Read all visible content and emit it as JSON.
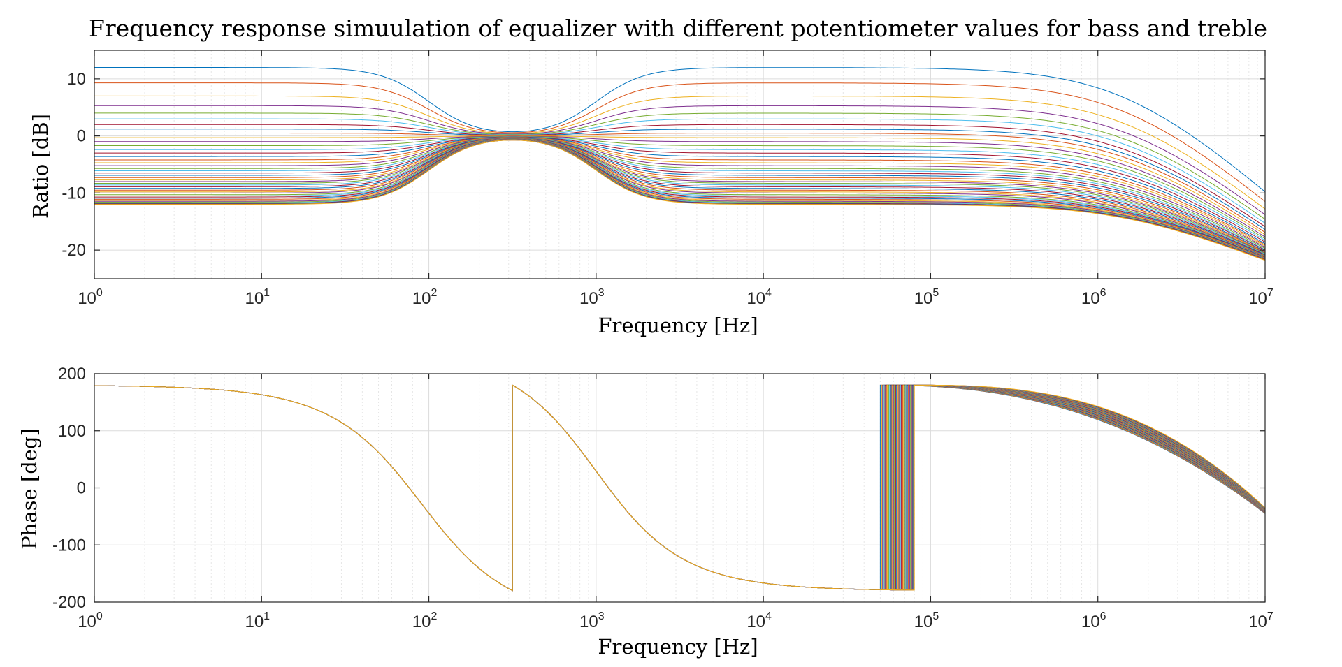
{
  "figure": {
    "title": "Frequency response simuulation of equalizer with different potentiometer values for bass and treble"
  },
  "chart_data": [
    {
      "type": "line",
      "id": "magnitude",
      "xlabel": "Frequency [Hz]",
      "ylabel": "Ratio [dB]",
      "xscale": "log",
      "xlim": [
        1,
        10000000
      ],
      "ylim": [
        -25,
        15
      ],
      "xticks": [
        {
          "base": "10",
          "exp": "0"
        },
        {
          "base": "10",
          "exp": "1"
        },
        {
          "base": "10",
          "exp": "2"
        },
        {
          "base": "10",
          "exp": "3"
        },
        {
          "base": "10",
          "exp": "4"
        },
        {
          "base": "10",
          "exp": "5"
        },
        {
          "base": "10",
          "exp": "6"
        },
        {
          "base": "10",
          "exp": "7"
        }
      ],
      "yticks": [
        "-20",
        "-10",
        "0",
        "10"
      ],
      "ytick_values": [
        -20,
        -10,
        0,
        10
      ],
      "grid": true,
      "series_count": 45,
      "series_description_values": {
        "bass_gain_dB": [
          12,
          9.3,
          7,
          5.3,
          4,
          3,
          2,
          1.2,
          0.5,
          -0.3,
          -1,
          -1.7,
          -2.4,
          -3,
          -3.6,
          -4.2,
          -4.7,
          -5.2,
          -5.7,
          -6.1,
          -6.5,
          -6.9,
          -7.3,
          -7.7,
          -8.0,
          -8.3,
          -8.6,
          -8.9,
          -9.2,
          -9.5,
          -9.8,
          -10.0,
          -10.3,
          -10.5,
          -10.7,
          -10.9,
          -11.1,
          -11.3,
          -11.45,
          -11.6,
          -11.72,
          -11.82,
          -11.9,
          -11.96,
          -12
        ],
        "treble_gain_dB": [
          12,
          9.3,
          7,
          5.3,
          4,
          3,
          2,
          1.2,
          0.5,
          -0.3,
          -1,
          -1.7,
          -2.4,
          -3,
          -3.6,
          -4.2,
          -4.7,
          -5.2,
          -5.7,
          -6.1,
          -6.5,
          -6.9,
          -7.3,
          -7.7,
          -8.0,
          -8.3,
          -8.6,
          -8.9,
          -9.2,
          -9.5,
          -9.8,
          -10.0,
          -10.3,
          -10.5,
          -10.7,
          -10.9,
          -11.1,
          -11.3,
          -11.45,
          -11.6,
          -11.72,
          -11.82,
          -11.9,
          -11.96,
          -12
        ],
        "endpoint_at_1e7_dB": [
          -9.8,
          -11.5,
          -12.8,
          -13.8,
          -14.6,
          -15.3,
          -15.9,
          -16.4,
          -16.9,
          -17.3,
          -17.7,
          -18.0,
          -18.3,
          -18.6,
          -18.9,
          -19.1,
          -19.3,
          -19.5,
          -19.7,
          -19.9,
          -20.0,
          -20.2,
          -20.3,
          -20.4,
          -20.5,
          -20.6,
          -20.7,
          -20.8,
          -20.9,
          -21.0,
          -21.05,
          -21.1,
          -21.15,
          -21.2,
          -21.25,
          -21.3,
          -21.35,
          -21.4,
          -21.45,
          -21.5,
          -21.55,
          -21.6,
          -21.65,
          -21.7,
          -21.8
        ]
      },
      "bass_corner_Hz": 100,
      "treble_corner_Hz": 1000,
      "center_Hz": 320
    },
    {
      "type": "line",
      "id": "phase",
      "xlabel": "Frequency [Hz]",
      "ylabel": "Phase [deg]",
      "xscale": "log",
      "xlim": [
        1,
        10000000
      ],
      "ylim": [
        -200,
        200
      ],
      "xticks": [
        {
          "base": "10",
          "exp": "0"
        },
        {
          "base": "10",
          "exp": "1"
        },
        {
          "base": "10",
          "exp": "2"
        },
        {
          "base": "10",
          "exp": "3"
        },
        {
          "base": "10",
          "exp": "4"
        },
        {
          "base": "10",
          "exp": "5"
        },
        {
          "base": "10",
          "exp": "6"
        },
        {
          "base": "10",
          "exp": "7"
        }
      ],
      "yticks": [
        "-200",
        "-100",
        "0",
        "100",
        "200"
      ],
      "ytick_values": [
        -200,
        -100,
        0,
        100,
        200
      ],
      "grid": true,
      "series_count": 45,
      "wrap_points": {
        "first_wrap_Hz": 316,
        "second_wrap_Hz_range": [
          50000,
          80000
        ]
      },
      "phase_at_1Hz_deg": 180,
      "phase_at_1e7_deg_range": [
        -45,
        -35
      ]
    }
  ],
  "colors": {
    "palette": [
      "#0072BD",
      "#D95319",
      "#EDB120",
      "#7E2F8E",
      "#77AC30",
      "#4DBEEE",
      "#A2142F"
    ],
    "axis": "#262626",
    "grid": "#dcdcdc"
  }
}
